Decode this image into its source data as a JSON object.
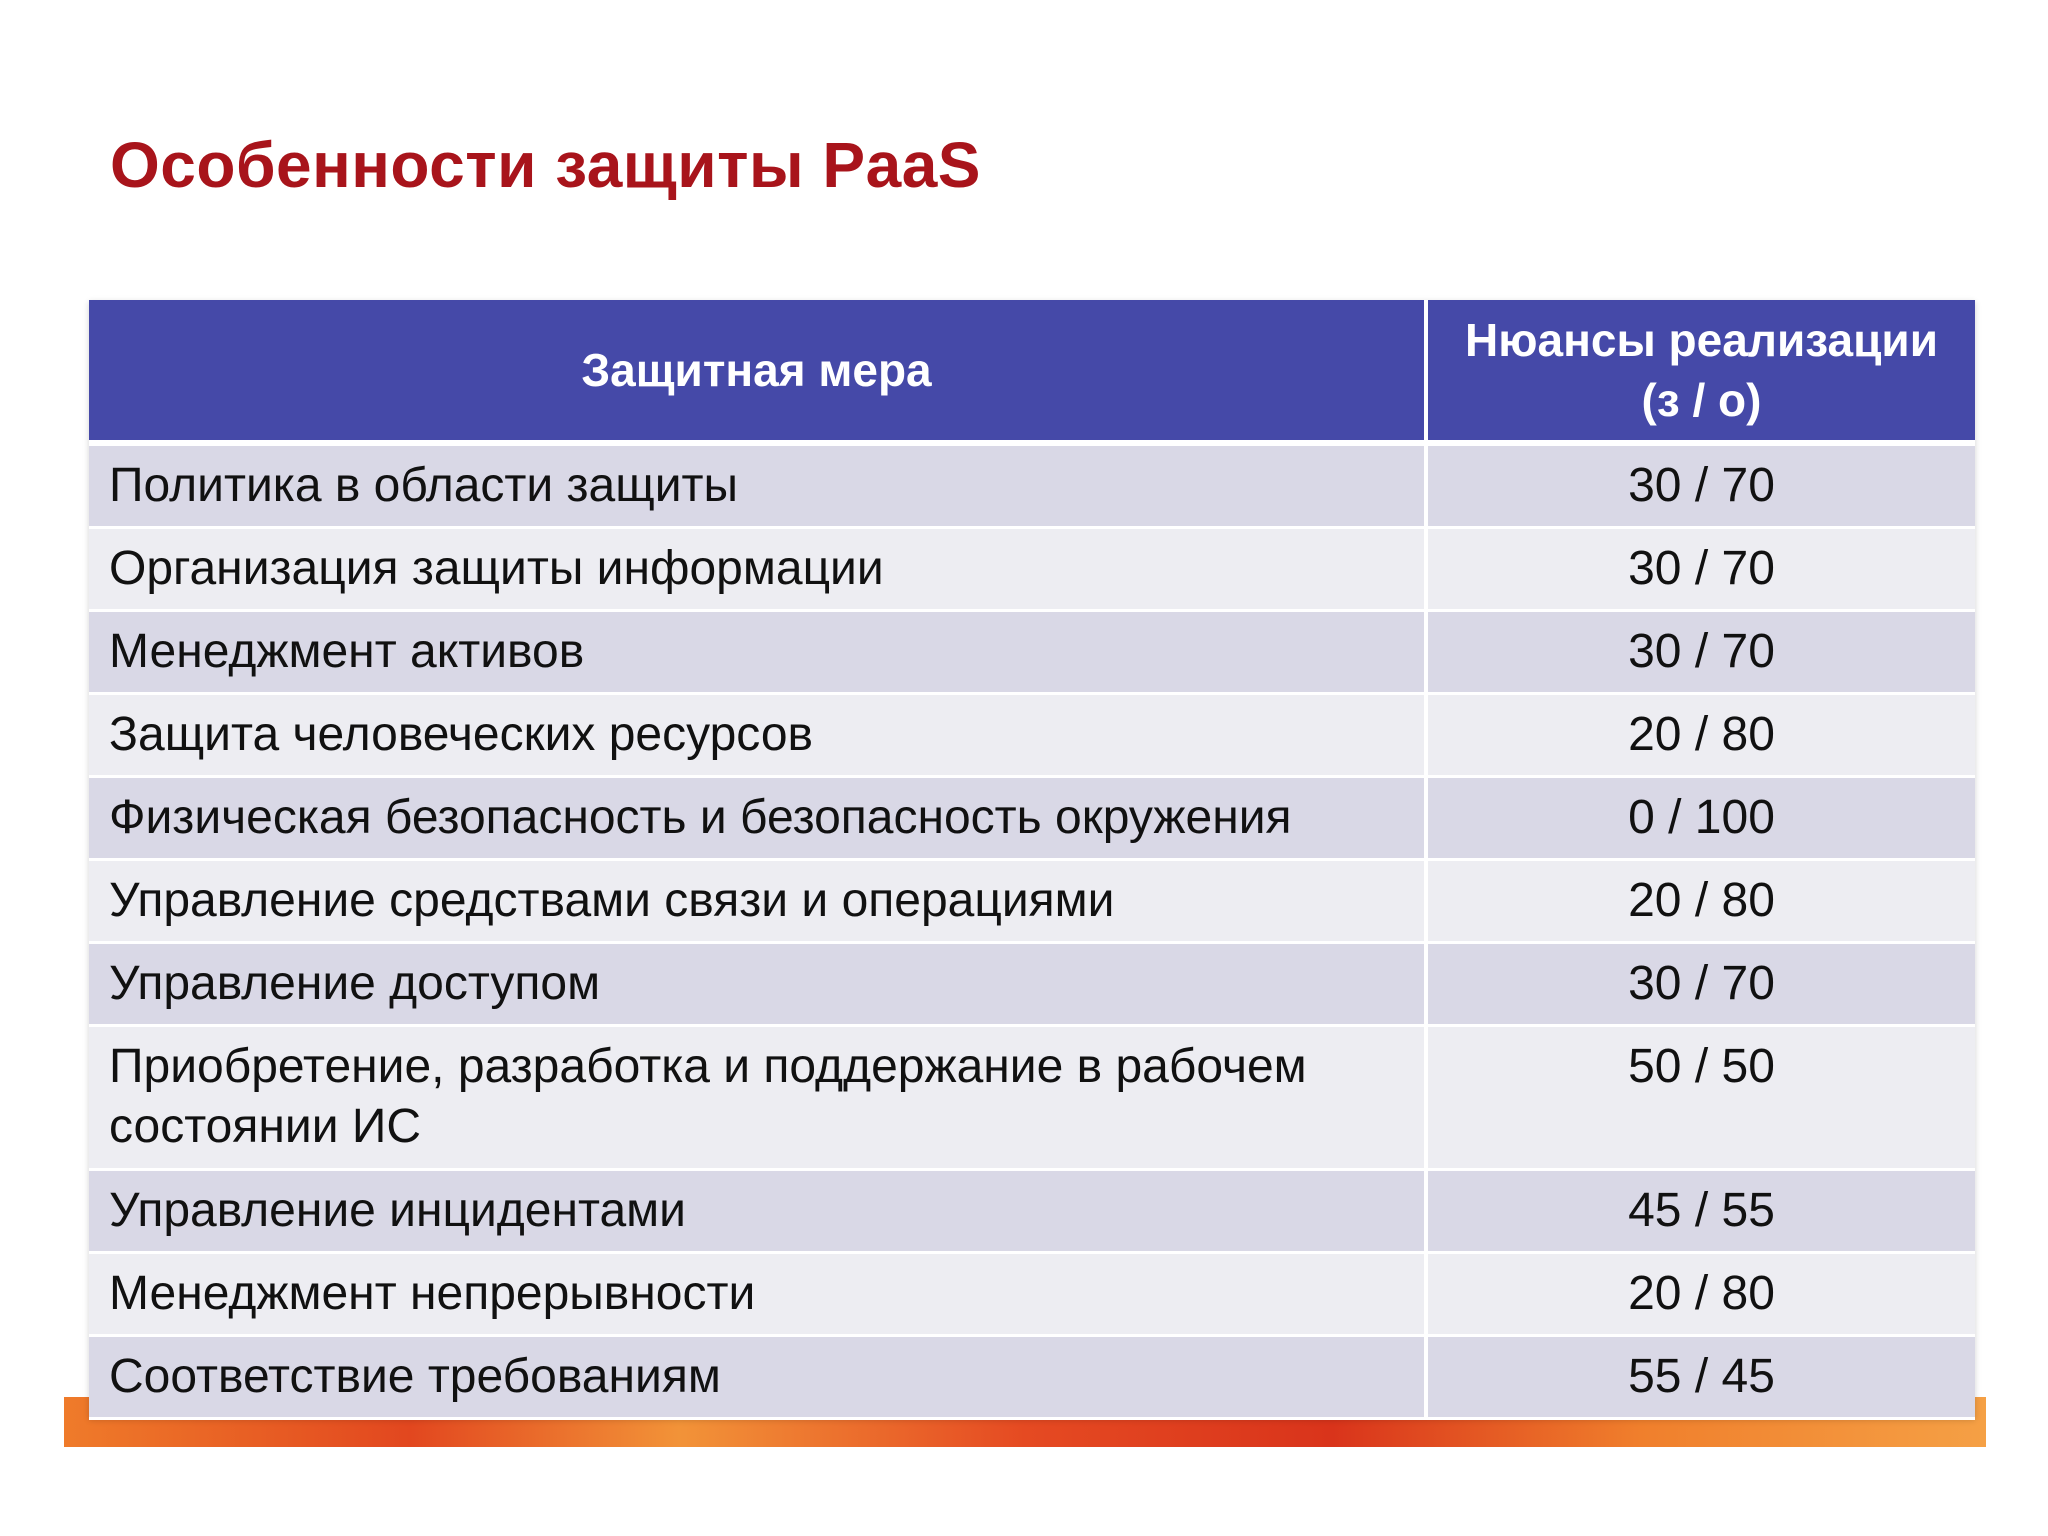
{
  "slide": {
    "title": "Особенности защиты PaaS"
  },
  "table": {
    "headers": {
      "measure": "Защитная мера",
      "nuances": "Нюансы реализации (з / о)"
    },
    "rows": [
      {
        "measure": "Политика в области защиты",
        "value": "30 / 70"
      },
      {
        "measure": "Организация защиты информации",
        "value": "30 / 70"
      },
      {
        "measure": "Менеджмент активов",
        "value": "30 / 70"
      },
      {
        "measure": "Защита человеческих ресурсов",
        "value": "20 / 80"
      },
      {
        "measure": "Физическая безопасность и безопасность окружения",
        "value": "0 / 100"
      },
      {
        "measure": "Управление средствами связи и операциями",
        "value": "20 / 80"
      },
      {
        "measure": "Управление доступом",
        "value": "30 / 70"
      },
      {
        "measure": "Приобретение, разработка и поддержание в рабочем состоянии ИС",
        "value": "50 / 50"
      },
      {
        "measure": "Управление инцидентами",
        "value": "45 / 55"
      },
      {
        "measure": "Менеджмент непрерывности",
        "value": "20 / 80"
      },
      {
        "measure": "Соответствие требованиям",
        "value": "55 / 45"
      }
    ]
  },
  "colors": {
    "title": "#a8141b",
    "header_bg": "#4549a8",
    "row_odd": "#d9d8e6",
    "row_even": "#ededf2",
    "footer_accent": "#e2471f"
  }
}
